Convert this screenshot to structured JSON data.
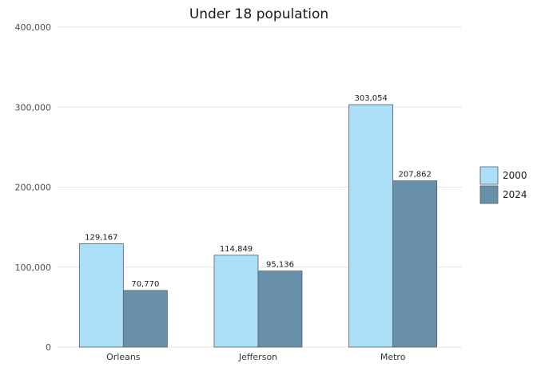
{
  "chart_data": {
    "type": "bar",
    "title": "Under 18 population",
    "xlabel": "",
    "ylabel": "",
    "categories": [
      "Orleans",
      "Jefferson",
      "Metro"
    ],
    "series": [
      {
        "name": "2000",
        "values": [
          129167,
          114849,
          303054
        ],
        "labels": [
          "129,167",
          "114,849",
          "303,054"
        ],
        "color": "#abdff8"
      },
      {
        "name": "2024",
        "values": [
          70770,
          95136,
          207862
        ],
        "labels": [
          "70,770",
          "95,136",
          "207,862"
        ],
        "color": "#6890aa"
      }
    ],
    "ylim": [
      0,
      400000
    ],
    "yticks": [
      0,
      100000,
      200000,
      300000,
      400000
    ],
    "ytick_labels": [
      "0",
      "100,000",
      "200,000",
      "300,000",
      "400,000"
    ],
    "grid": true,
    "legend": "right"
  }
}
